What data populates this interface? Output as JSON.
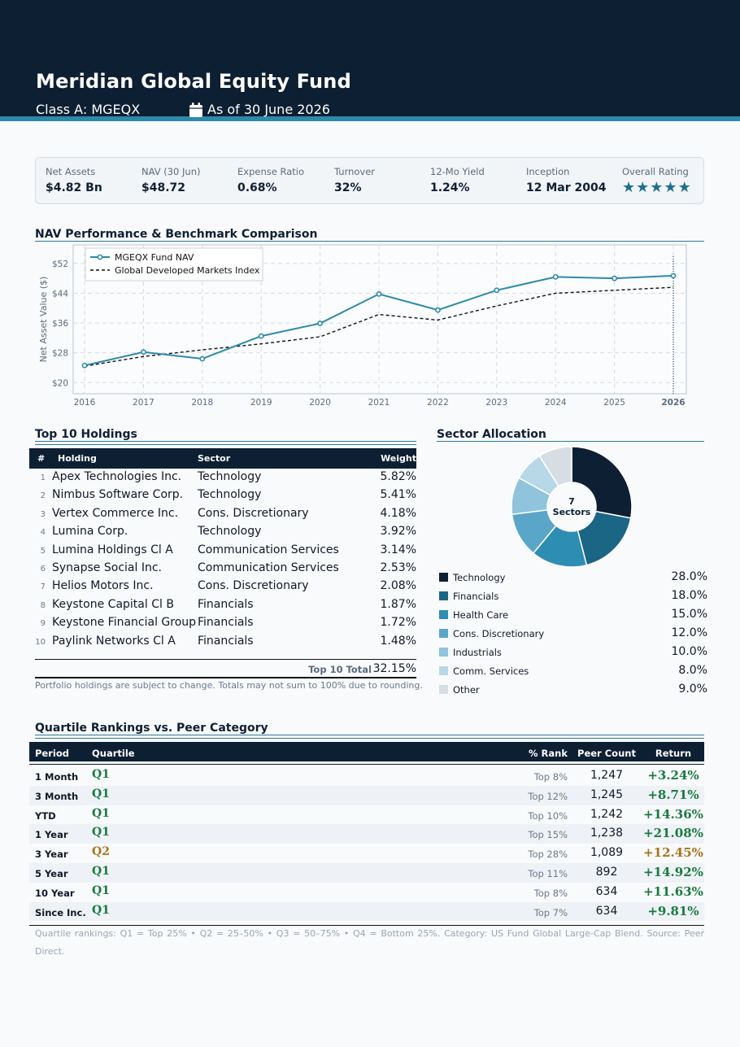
{
  "header": {
    "title": "Meridian Global Equity Fund",
    "class_label": "Class A: MGEQX",
    "as_of": "As of 30 June 2026"
  },
  "stats": [
    {
      "label": "Net Assets",
      "value": "$4.82 Bn"
    },
    {
      "label": "NAV (30 Jun)",
      "value": "$48.72"
    },
    {
      "label": "Expense Ratio",
      "value": "0.68%"
    },
    {
      "label": "Turnover",
      "value": "32%"
    },
    {
      "label": "12-Mo Yield",
      "value": "1.24%"
    },
    {
      "label": "Inception",
      "value": "12 Mar 2004"
    },
    {
      "label": "Overall Rating",
      "stars": 5
    }
  ],
  "performance": {
    "title": "NAV Performance & Benchmark Comparison"
  },
  "chart_data": {
    "type": "line",
    "title": "",
    "xlabel": "",
    "ylabel": "Net Asset Value ($)",
    "x": [
      "2016",
      "2017",
      "2018",
      "2019",
      "2020",
      "2021",
      "2022",
      "2023",
      "2024",
      "2025",
      "2026"
    ],
    "ylim": [
      17,
      57
    ],
    "yticks": [
      "$20",
      "$28",
      "$36",
      "$44",
      "$52"
    ],
    "grid": true,
    "legend_position": "top-left",
    "highlight_x": "2026",
    "series": [
      {
        "name": "MGEQX Fund NAV",
        "color": "#2d8aa8",
        "style": "solid-markers",
        "values": [
          24.6,
          28.2,
          26.4,
          32.5,
          35.9,
          43.8,
          39.5,
          44.8,
          48.4,
          48.0,
          48.72
        ]
      },
      {
        "name": "Global Developed Markets Index",
        "color": "#111111",
        "style": "dashed",
        "values": [
          24.4,
          27.0,
          28.8,
          30.4,
          32.3,
          38.3,
          36.8,
          40.6,
          44.0,
          44.8,
          45.6
        ]
      }
    ]
  },
  "holdings": {
    "title": "Top 10 Holdings",
    "headers": {
      "num": "#",
      "name": "Holding",
      "sector": "Sector",
      "weight": "Weight"
    },
    "rows": [
      {
        "num": "1",
        "name": "Apex Technologies Inc.",
        "sector": "Technology",
        "weight": "5.82%"
      },
      {
        "num": "2",
        "name": "Nimbus Software Corp.",
        "sector": "Technology",
        "weight": "5.41%"
      },
      {
        "num": "3",
        "name": "Vertex Commerce Inc.",
        "sector": "Cons. Discretionary",
        "weight": "4.18%"
      },
      {
        "num": "4",
        "name": "Lumina Corp.",
        "sector": "Technology",
        "weight": "3.92%"
      },
      {
        "num": "5",
        "name": "Lumina Holdings Cl A",
        "sector": "Communication Services",
        "weight": "3.14%"
      },
      {
        "num": "6",
        "name": "Synapse Social Inc.",
        "sector": "Communication Services",
        "weight": "2.53%"
      },
      {
        "num": "7",
        "name": "Helios Motors Inc.",
        "sector": "Cons. Discretionary",
        "weight": "2.08%"
      },
      {
        "num": "8",
        "name": "Keystone Capital Cl B",
        "sector": "Financials",
        "weight": "1.87%"
      },
      {
        "num": "9",
        "name": "Keystone Financial Group",
        "sector": "Financials",
        "weight": "1.72%"
      },
      {
        "num": "10",
        "name": "Paylink Networks Cl A",
        "sector": "Financials",
        "weight": "1.48%"
      }
    ],
    "total_label": "Top 10 Total",
    "total_value": "32.15%",
    "note": "Portfolio holdings are subject to change.  Totals may not sum to 100% due to rounding."
  },
  "sectors": {
    "title": "Sector Allocation",
    "center_count": "7",
    "center_label": "Sectors",
    "items": [
      {
        "name": "Technology",
        "pct": "28.0%",
        "value": 28.0,
        "color": "#0d1f33"
      },
      {
        "name": "Financials",
        "pct": "18.0%",
        "value": 18.0,
        "color": "#1b6585"
      },
      {
        "name": "Health Care",
        "pct": "15.0%",
        "value": 15.0,
        "color": "#2d8db3"
      },
      {
        "name": "Cons. Discretionary",
        "pct": "12.0%",
        "value": 12.0,
        "color": "#5aa6c8"
      },
      {
        "name": "Industrials",
        "pct": "10.0%",
        "value": 10.0,
        "color": "#8fc4dc"
      },
      {
        "name": "Comm. Services",
        "pct": "8.0%",
        "value": 8.0,
        "color": "#b6d8e7"
      },
      {
        "name": "Other",
        "pct": "9.0%",
        "value": 9.0,
        "color": "#d6dde3"
      }
    ]
  },
  "quartile": {
    "title": "Quartile Rankings vs. Peer Category",
    "headers": {
      "period": "Period",
      "quartile": "Quartile",
      "rank": "% Rank",
      "peer": "Peer Count",
      "ret": "Return"
    },
    "rows": [
      {
        "period": "1 Month",
        "quartile": "Q1",
        "rank": "Top 8%",
        "peer": "1,247",
        "ret": "+3.24%"
      },
      {
        "period": "3 Month",
        "quartile": "Q1",
        "rank": "Top 12%",
        "peer": "1,245",
        "ret": "+8.71%"
      },
      {
        "period": "YTD",
        "quartile": "Q1",
        "rank": "Top 10%",
        "peer": "1,242",
        "ret": "+14.36%"
      },
      {
        "period": "1 Year",
        "quartile": "Q1",
        "rank": "Top 15%",
        "peer": "1,238",
        "ret": "+21.08%"
      },
      {
        "period": "3 Year",
        "quartile": "Q2",
        "rank": "Top 28%",
        "peer": "1,089",
        "ret": "+12.45%"
      },
      {
        "period": "5 Year",
        "quartile": "Q1",
        "rank": "Top 11%",
        "peer": "892",
        "ret": "+14.92%"
      },
      {
        "period": "10 Year",
        "quartile": "Q1",
        "rank": "Top 8%",
        "peer": "634",
        "ret": "+11.63%"
      },
      {
        "period": "Since Inc.",
        "quartile": "Q1",
        "rank": "Top 7%",
        "peer": "634",
        "ret": "+9.81%"
      }
    ],
    "colors": {
      "Q1": "#1a7a3e",
      "Q2": "#a8741a"
    },
    "note": "Quartile rankings: Q1 = Top 25% • Q2 = 25–50% • Q3 = 50–75% • Q4 = Bottom 25%. Category: US Fund Global Large-Cap Blend. Source: Peer Direct."
  }
}
